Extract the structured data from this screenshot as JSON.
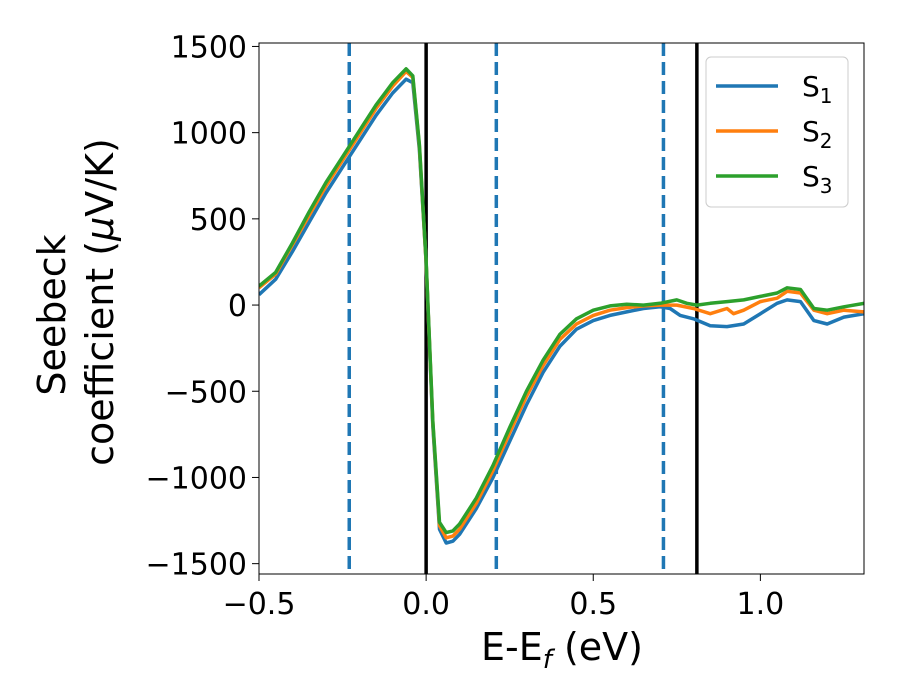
{
  "chart_data": {
    "type": "line",
    "xlabel": {
      "main": "E-E",
      "sub": "f",
      "tail": " (eV)"
    },
    "ylabel": {
      "line1": "Seebeck",
      "line2": "coefficient  (",
      "mu": "μ",
      "line2_tail": "V/K)"
    },
    "xlim": [
      -0.5,
      1.31
    ],
    "ylim": [
      -1560,
      1520
    ],
    "xticks": [
      -0.5,
      0.0,
      0.5,
      1.0
    ],
    "xtick_labels": [
      "−0.5",
      "0.0",
      "0.5",
      "1.0"
    ],
    "yticks": [
      -1500,
      -1000,
      -500,
      0,
      500,
      1000,
      1500
    ],
    "ytick_labels": [
      "−1500",
      "−1000",
      "−500",
      "0",
      "500",
      "1000",
      "1500"
    ],
    "grid": false,
    "legend_position": "top-right",
    "vlines_solid": [
      0.0,
      0.81
    ],
    "vlines_dashed": [
      -0.23,
      0.21,
      0.71
    ],
    "vline_solid_color": "#000000",
    "vline_dashed_color": "#1f77b4",
    "series": [
      {
        "name": "S",
        "sub": "1",
        "color": "#1f77b4",
        "points": [
          [
            -0.5,
            60
          ],
          [
            -0.45,
            150
          ],
          [
            -0.4,
            310
          ],
          [
            -0.35,
            480
          ],
          [
            -0.3,
            650
          ],
          [
            -0.25,
            800
          ],
          [
            -0.2,
            950
          ],
          [
            -0.15,
            1100
          ],
          [
            -0.1,
            1230
          ],
          [
            -0.06,
            1310
          ],
          [
            -0.04,
            1290
          ],
          [
            -0.02,
            900
          ],
          [
            0.0,
            250
          ],
          [
            0.02,
            -700
          ],
          [
            0.04,
            -1300
          ],
          [
            0.06,
            -1380
          ],
          [
            0.08,
            -1370
          ],
          [
            0.1,
            -1330
          ],
          [
            0.15,
            -1180
          ],
          [
            0.2,
            -1000
          ],
          [
            0.25,
            -790
          ],
          [
            0.3,
            -580
          ],
          [
            0.35,
            -390
          ],
          [
            0.4,
            -240
          ],
          [
            0.45,
            -140
          ],
          [
            0.5,
            -90
          ],
          [
            0.55,
            -60
          ],
          [
            0.6,
            -40
          ],
          [
            0.65,
            -20
          ],
          [
            0.7,
            -10
          ],
          [
            0.73,
            -20
          ],
          [
            0.76,
            -60
          ],
          [
            0.8,
            -80
          ],
          [
            0.85,
            -120
          ],
          [
            0.9,
            -125
          ],
          [
            0.95,
            -110
          ],
          [
            1.0,
            -50
          ],
          [
            1.05,
            10
          ],
          [
            1.08,
            30
          ],
          [
            1.12,
            20
          ],
          [
            1.16,
            -90
          ],
          [
            1.2,
            -110
          ],
          [
            1.25,
            -70
          ],
          [
            1.31,
            -50
          ]
        ]
      },
      {
        "name": "S",
        "sub": "2",
        "color": "#ff7f0e",
        "points": [
          [
            -0.5,
            100
          ],
          [
            -0.45,
            180
          ],
          [
            -0.4,
            350
          ],
          [
            -0.35,
            520
          ],
          [
            -0.3,
            690
          ],
          [
            -0.25,
            840
          ],
          [
            -0.2,
            990
          ],
          [
            -0.15,
            1140
          ],
          [
            -0.1,
            1270
          ],
          [
            -0.06,
            1355
          ],
          [
            -0.04,
            1320
          ],
          [
            -0.02,
            920
          ],
          [
            0.0,
            250
          ],
          [
            0.02,
            -680
          ],
          [
            0.04,
            -1280
          ],
          [
            0.06,
            -1350
          ],
          [
            0.08,
            -1340
          ],
          [
            0.1,
            -1300
          ],
          [
            0.15,
            -1150
          ],
          [
            0.2,
            -960
          ],
          [
            0.25,
            -740
          ],
          [
            0.3,
            -530
          ],
          [
            0.35,
            -350
          ],
          [
            0.4,
            -200
          ],
          [
            0.45,
            -110
          ],
          [
            0.5,
            -60
          ],
          [
            0.55,
            -30
          ],
          [
            0.6,
            -15
          ],
          [
            0.65,
            -5
          ],
          [
            0.7,
            0
          ],
          [
            0.75,
            0
          ],
          [
            0.8,
            -20
          ],
          [
            0.85,
            -50
          ],
          [
            0.9,
            -20
          ],
          [
            0.92,
            -50
          ],
          [
            0.95,
            -30
          ],
          [
            1.0,
            20
          ],
          [
            1.05,
            40
          ],
          [
            1.08,
            80
          ],
          [
            1.12,
            70
          ],
          [
            1.16,
            -30
          ],
          [
            1.2,
            -50
          ],
          [
            1.25,
            -30
          ],
          [
            1.31,
            -40
          ]
        ]
      },
      {
        "name": "S",
        "sub": "3",
        "color": "#2ca02c",
        "points": [
          [
            -0.5,
            110
          ],
          [
            -0.45,
            190
          ],
          [
            -0.4,
            360
          ],
          [
            -0.35,
            540
          ],
          [
            -0.3,
            710
          ],
          [
            -0.25,
            860
          ],
          [
            -0.2,
            1010
          ],
          [
            -0.15,
            1160
          ],
          [
            -0.1,
            1290
          ],
          [
            -0.06,
            1370
          ],
          [
            -0.04,
            1330
          ],
          [
            -0.02,
            930
          ],
          [
            0.0,
            260
          ],
          [
            0.02,
            -670
          ],
          [
            0.04,
            -1260
          ],
          [
            0.06,
            -1320
          ],
          [
            0.08,
            -1310
          ],
          [
            0.1,
            -1270
          ],
          [
            0.15,
            -1120
          ],
          [
            0.2,
            -930
          ],
          [
            0.25,
            -710
          ],
          [
            0.3,
            -500
          ],
          [
            0.35,
            -320
          ],
          [
            0.4,
            -170
          ],
          [
            0.45,
            -80
          ],
          [
            0.5,
            -30
          ],
          [
            0.55,
            -5
          ],
          [
            0.6,
            5
          ],
          [
            0.65,
            0
          ],
          [
            0.7,
            10
          ],
          [
            0.75,
            30
          ],
          [
            0.78,
            10
          ],
          [
            0.81,
            0
          ],
          [
            0.85,
            10
          ],
          [
            0.9,
            20
          ],
          [
            0.95,
            30
          ],
          [
            1.0,
            50
          ],
          [
            1.05,
            70
          ],
          [
            1.08,
            100
          ],
          [
            1.12,
            90
          ],
          [
            1.16,
            -20
          ],
          [
            1.2,
            -30
          ],
          [
            1.25,
            -10
          ],
          [
            1.31,
            10
          ]
        ]
      }
    ]
  }
}
